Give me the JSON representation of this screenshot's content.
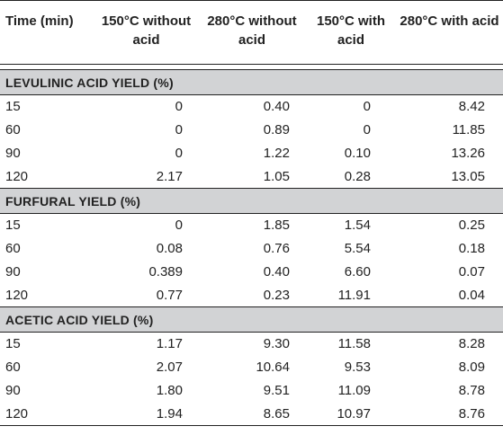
{
  "table": {
    "headers": [
      "Time (min)",
      "150°C without acid",
      "280°C without acid",
      "150°C with acid",
      "280°C with acid"
    ],
    "sections": [
      {
        "title": "LEVULINIC ACID YIELD (%)",
        "rows": [
          [
            "15",
            "0",
            "0.40",
            "0",
            "8.42"
          ],
          [
            "60",
            "0",
            "0.89",
            "0",
            "11.85"
          ],
          [
            "90",
            "0",
            "1.22",
            "0.10",
            "13.26"
          ],
          [
            "120",
            "2.17",
            "1.05",
            "0.28",
            "13.05"
          ]
        ]
      },
      {
        "title": "FURFURAL YIELD (%)",
        "rows": [
          [
            "15",
            "0",
            "1.85",
            "1.54",
            "0.25"
          ],
          [
            "60",
            "0.08",
            "0.76",
            "5.54",
            "0.18"
          ],
          [
            "90",
            "0.389",
            "0.40",
            "6.60",
            "0.07"
          ],
          [
            "120",
            "0.77",
            "0.23",
            "11.91",
            "0.04"
          ]
        ]
      },
      {
        "title": "ACETIC ACID YIELD (%)",
        "rows": [
          [
            "15",
            "1.17",
            "9.30",
            "11.58",
            "8.28"
          ],
          [
            "60",
            "2.07",
            "10.64",
            "9.53",
            "8.09"
          ],
          [
            "90",
            "1.80",
            "9.51",
            "11.09",
            "8.78"
          ],
          [
            "120",
            "1.94",
            "8.65",
            "10.97",
            "8.76"
          ]
        ]
      }
    ]
  }
}
